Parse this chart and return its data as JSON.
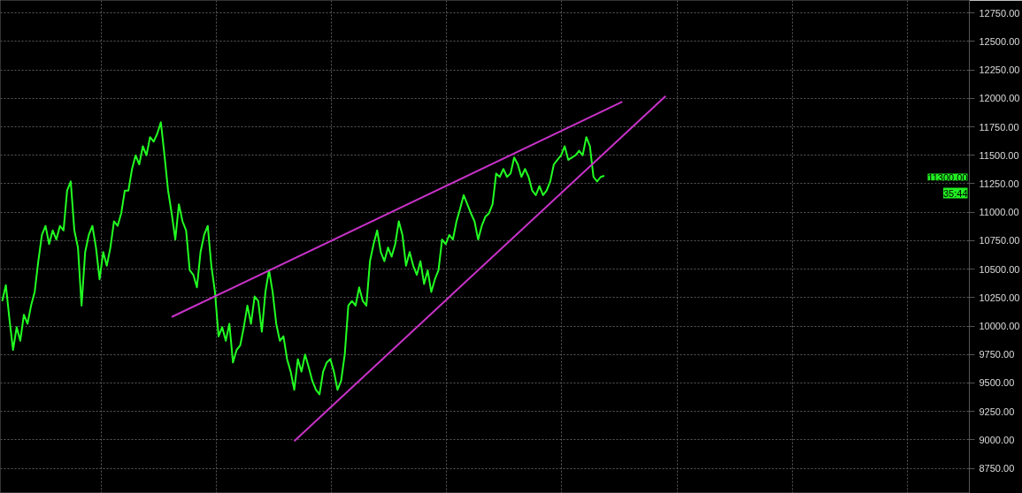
{
  "chart_data": {
    "type": "line",
    "tick_labels": "y",
    "grid": true,
    "line_style": "solid",
    "ylim": [
      8530,
      12860
    ],
    "categories": [
      null,
      null,
      null,
      null,
      null,
      null,
      null,
      null,
      null,
      null,
      null,
      null,
      null,
      null,
      null,
      null,
      null,
      null,
      null,
      null,
      null,
      null,
      null,
      null,
      null,
      null,
      null,
      null,
      null,
      null,
      null,
      null,
      null,
      null,
      null,
      null,
      null,
      null,
      null,
      null,
      null,
      null,
      null,
      null,
      null,
      null,
      null,
      null,
      null,
      null,
      null,
      null,
      null,
      null,
      null,
      null,
      null,
      null,
      null,
      null,
      null,
      null,
      null,
      null,
      null,
      null,
      null,
      null,
      null,
      null,
      null,
      null,
      null,
      null,
      null,
      null,
      null,
      null,
      null,
      null,
      null,
      null,
      null,
      null,
      null,
      null,
      null,
      null,
      null,
      null,
      null,
      null,
      null,
      null,
      null,
      null,
      null,
      null,
      null,
      null,
      null,
      null,
      null,
      null,
      null,
      null,
      null,
      null,
      null,
      null,
      null,
      null,
      null,
      null,
      null,
      null,
      null,
      null,
      null,
      null,
      null,
      null,
      null,
      null,
      null,
      null,
      null,
      null,
      null,
      null,
      null,
      null,
      null,
      null,
      null,
      null,
      null,
      null,
      null,
      null,
      null,
      null,
      null,
      null,
      null,
      null,
      null,
      null,
      null,
      null,
      null,
      null,
      null,
      null,
      null,
      null,
      null,
      null,
      null,
      null,
      null,
      null,
      null,
      null,
      null,
      null,
      null,
      null,
      null,
      null,
      null,
      null,
      null,
      null,
      null,
      null,
      null,
      null,
      null,
      null,
      null,
      null,
      null,
      null,
      null
    ],
    "yticks": [
      {
        "value": 8750,
        "label": "8750.00"
      },
      {
        "value": 9000,
        "label": "9000.00"
      },
      {
        "value": 9250,
        "label": "9250.00"
      },
      {
        "value": 9500,
        "label": "9500.00"
      },
      {
        "value": 9750,
        "label": "9750.00"
      },
      {
        "value": 10000,
        "label": "10000.00"
      },
      {
        "value": 10250,
        "label": "10250.00"
      },
      {
        "value": 10500,
        "label": "10500.00"
      },
      {
        "value": 10750,
        "label": "10750.00"
      },
      {
        "value": 11000,
        "label": "11000.00"
      },
      {
        "value": 11250,
        "label": "11250.00"
      },
      {
        "value": 11500,
        "label": "11500.00"
      },
      {
        "value": 11750,
        "label": "11750.00"
      },
      {
        "value": 12000,
        "label": "12000.00"
      },
      {
        "value": 12250,
        "label": "12250.00"
      },
      {
        "value": 12500,
        "label": "12500.00"
      },
      {
        "value": 12750,
        "label": "12750.00"
      }
    ],
    "annotations": [
      "11300.00",
      "35:44"
    ],
    "series": [
      {
        "color": "#22ff22",
        "values": [
          10220,
          10360,
          10060,
          9790,
          9990,
          9870,
          10100,
          10020,
          10180,
          10300,
          10570,
          10800,
          10880,
          10720,
          10840,
          10760,
          10880,
          10840,
          11190,
          11270,
          10840,
          10690,
          10180,
          10650,
          10800,
          10880,
          10690,
          10410,
          10650,
          10530,
          10690,
          10920,
          10880,
          10990,
          11190,
          11190,
          11380,
          11500,
          11420,
          11580,
          11500,
          11660,
          11620,
          11690,
          11790,
          11500,
          11190,
          10990,
          10760,
          11070,
          10920,
          10840,
          10490,
          10450,
          10340,
          10650,
          10800,
          10880,
          10530,
          10300,
          9910,
          9990,
          9870,
          10020,
          9680,
          9790,
          9830,
          9990,
          10180,
          10020,
          10260,
          10220,
          9950,
          10300,
          10490,
          10300,
          10020,
          9870,
          9910,
          9710,
          9600,
          9440,
          9710,
          9600,
          9750,
          9640,
          9520,
          9440,
          9400,
          9600,
          9680,
          9710,
          9600,
          9440,
          9520,
          9750,
          10180,
          10220,
          10180,
          10340,
          10220,
          10180,
          10570,
          10720,
          10840,
          10650,
          10570,
          10690,
          10610,
          10720,
          10920,
          10800,
          10530,
          10650,
          10530,
          10450,
          10570,
          10370,
          10490,
          10300,
          10410,
          10490,
          10760,
          10720,
          10800,
          10760,
          10920,
          11030,
          11150,
          11070,
          10990,
          10920,
          10760,
          10880,
          10960,
          10990,
          11070,
          11340,
          11310,
          11380,
          11310,
          11340,
          11480,
          11420,
          11310,
          11380,
          11310,
          11190,
          11150,
          11230,
          11150,
          11190,
          11270,
          11420,
          11460,
          11500,
          11580,
          11460,
          11480,
          11500,
          11540,
          11500,
          11660,
          11580,
          11310,
          11270,
          11310,
          11320,
          null,
          null,
          null,
          null,
          null,
          null,
          null,
          null,
          null,
          null,
          null,
          null,
          null,
          null,
          null,
          null,
          null
        ]
      },
      {
        "type": "line",
        "color": "#c832c8",
        "values": [
          null,
          null,
          null,
          null,
          null,
          null,
          null,
          null,
          null,
          null,
          null,
          null,
          null,
          null,
          null,
          null,
          null,
          null,
          null,
          null,
          null,
          null,
          null,
          null,
          null,
          null,
          null,
          null,
          null,
          null,
          null,
          null,
          null,
          null,
          null,
          null,
          null,
          null,
          null,
          null,
          null,
          null,
          null,
          null,
          null,
          null,
          null,
          10080,
          null,
          null,
          null,
          null,
          null,
          null,
          null,
          null,
          null,
          null,
          null,
          null,
          null,
          null,
          null,
          null,
          null,
          null,
          null,
          null,
          null,
          null,
          null,
          null,
          null,
          null,
          null,
          null,
          null,
          null,
          null,
          null,
          null,
          null,
          null,
          null,
          null,
          null,
          null,
          null,
          null,
          null,
          null,
          null,
          null,
          null,
          null,
          null,
          null,
          null,
          null,
          null,
          null,
          null,
          null,
          null,
          null,
          null,
          null,
          null,
          null,
          null,
          null,
          null,
          null,
          null,
          null,
          null,
          null,
          null,
          null,
          null,
          null,
          null,
          null,
          null,
          null,
          null,
          null,
          null,
          null,
          null,
          null,
          null,
          null,
          null,
          null,
          null,
          null,
          null,
          null,
          null,
          null,
          null,
          null,
          null,
          null,
          null,
          null,
          null,
          null,
          null,
          null,
          null,
          null,
          null,
          null,
          null,
          null,
          null,
          null,
          null,
          null,
          null,
          null,
          null,
          null,
          null,
          null,
          null,
          null,
          null,
          null,
          null,
          11970,
          null,
          null,
          null,
          null,
          null,
          null,
          null,
          null,
          null,
          null,
          null,
          null
        ]
      },
      {
        "type": "line",
        "color": "#c832c8",
        "values": [
          null,
          null,
          null,
          null,
          null,
          null,
          null,
          null,
          null,
          null,
          null,
          null,
          null,
          null,
          null,
          null,
          null,
          null,
          null,
          null,
          null,
          null,
          null,
          null,
          null,
          null,
          null,
          null,
          null,
          null,
          null,
          null,
          null,
          null,
          null,
          null,
          null,
          null,
          null,
          null,
          null,
          null,
          null,
          null,
          null,
          null,
          null,
          null,
          null,
          null,
          null,
          null,
          null,
          null,
          null,
          null,
          null,
          null,
          null,
          null,
          null,
          null,
          null,
          null,
          null,
          null,
          null,
          null,
          null,
          null,
          null,
          null,
          null,
          null,
          null,
          null,
          null,
          null,
          null,
          null,
          null,
          8990,
          null,
          null,
          null,
          null,
          null,
          null,
          null,
          null,
          null,
          null,
          null,
          null,
          null,
          null,
          null,
          null,
          null,
          null,
          null,
          null,
          null,
          null,
          null,
          null,
          null,
          null,
          null,
          null,
          null,
          null,
          null,
          null,
          null,
          null,
          null,
          null,
          null,
          null,
          null,
          null,
          null,
          null,
          null,
          null,
          null,
          null,
          null,
          null,
          null,
          null,
          null,
          null,
          null,
          null,
          null,
          null,
          null,
          null,
          null,
          null,
          null,
          null,
          null,
          null,
          null,
          null,
          null,
          null,
          null,
          null,
          null,
          null,
          null,
          null,
          null,
          null,
          null,
          null,
          null,
          null,
          null,
          null,
          null,
          null,
          null,
          null,
          null,
          null,
          null,
          null,
          null,
          null,
          null,
          null,
          null,
          null,
          null,
          null,
          null,
          null,
          null,
          null,
          12020
        ]
      }
    ]
  }
}
